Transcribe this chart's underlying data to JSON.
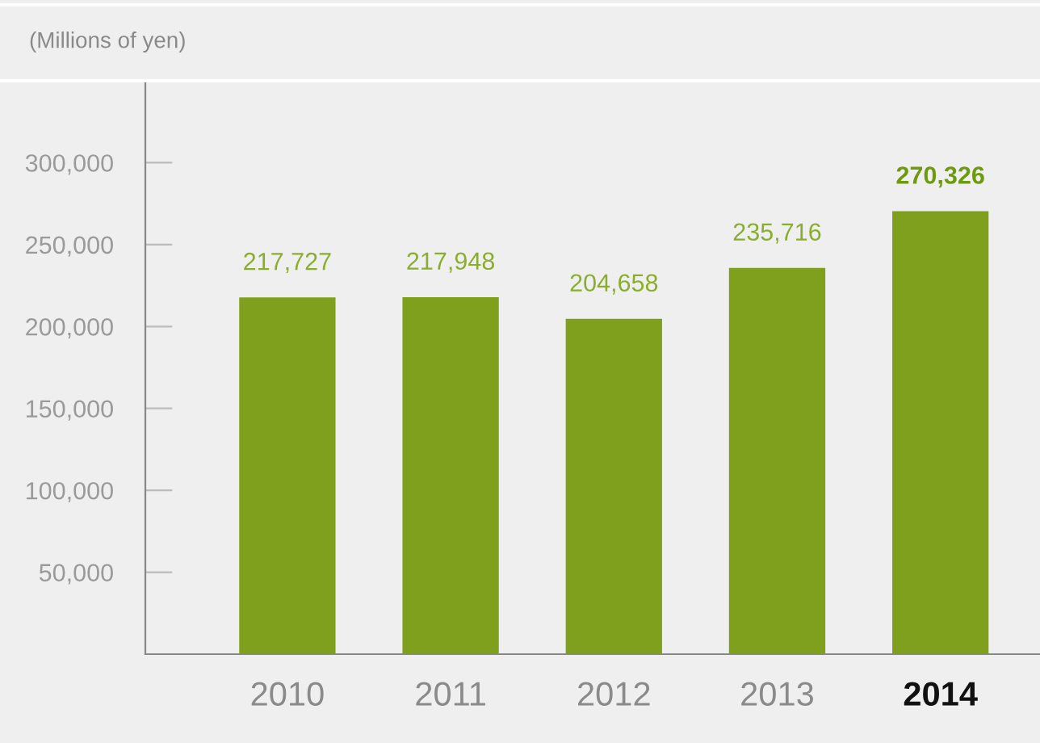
{
  "chart_data": {
    "type": "bar",
    "ylabel": "(Millions of yen)",
    "categories": [
      "2010",
      "2011",
      "2012",
      "2013",
      "2014"
    ],
    "values": [
      217727,
      217948,
      204658,
      235716,
      270326
    ],
    "value_labels": [
      "217,727",
      "217,948",
      "204,658",
      "235,716",
      "270,326"
    ],
    "color": "#7fa01c",
    "ylim": [
      0,
      350000
    ],
    "yticks": [
      {
        "value": 50000,
        "label": "50,000"
      },
      {
        "value": 100000,
        "label": "100,000"
      },
      {
        "value": 150000,
        "label": "150,000"
      },
      {
        "value": 200000,
        "label": "200,000"
      },
      {
        "value": 250000,
        "label": "250,000"
      },
      {
        "value": 300000,
        "label": "300,000"
      }
    ],
    "grid": false,
    "legend": false
  }
}
